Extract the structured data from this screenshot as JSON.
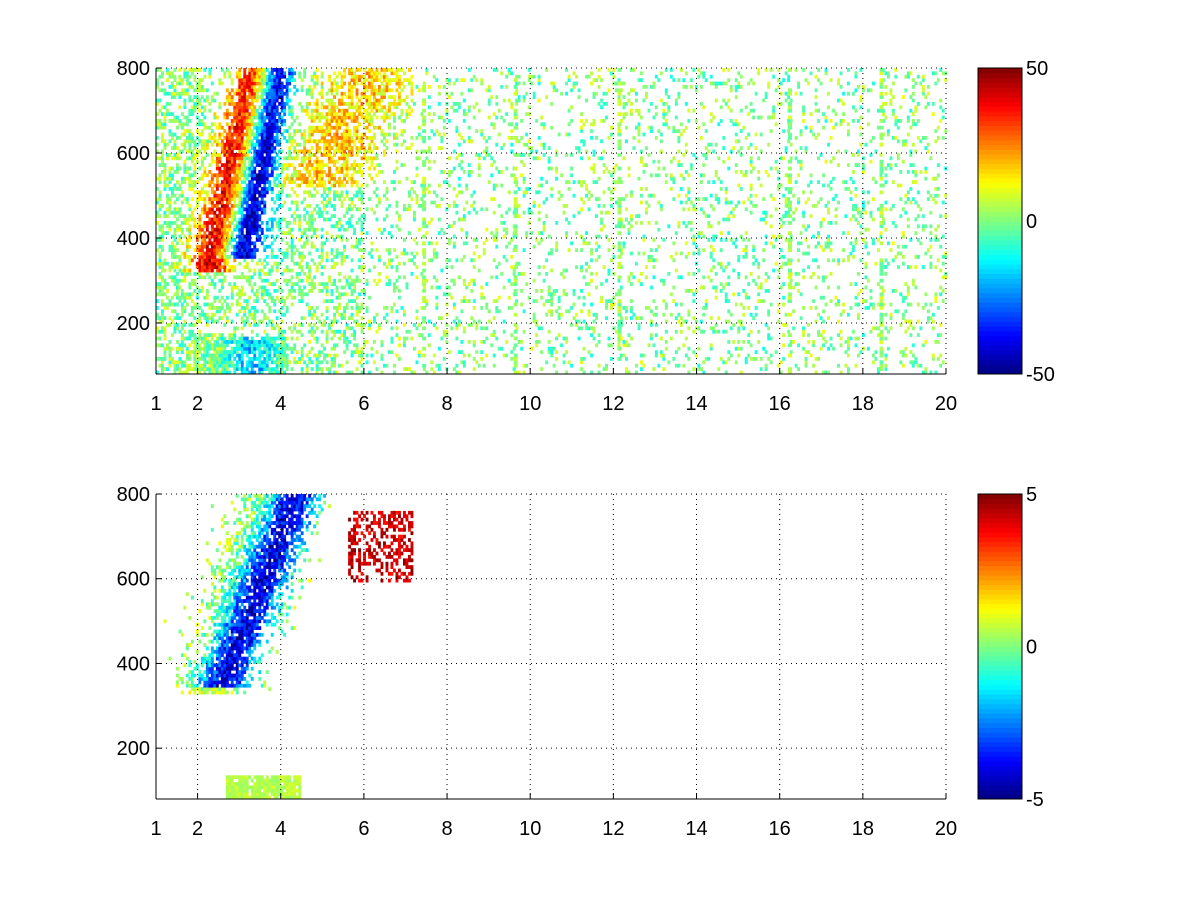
{
  "chart_data": [
    {
      "type": "heatmap",
      "title": "",
      "xlabel": "",
      "ylabel": "",
      "xlim": [
        1,
        20
      ],
      "ylim": [
        80,
        800
      ],
      "grid": true,
      "x_ticks": [
        1,
        2,
        4,
        6,
        8,
        10,
        12,
        14,
        16,
        18,
        20
      ],
      "x_tick_labels": [
        "1",
        "2",
        "4",
        "6",
        "8",
        "10",
        "12",
        "14",
        "16",
        "18",
        "20"
      ],
      "y_ticks": [
        200,
        400,
        600,
        800
      ],
      "y_tick_labels": [
        "200",
        "400",
        "600",
        "800"
      ],
      "colormap": "jet",
      "clim": [
        -50,
        50
      ],
      "colorbar_ticks": [
        50,
        0,
        -50
      ],
      "colorbar_tick_labels": [
        "50",
        "0",
        "-50"
      ],
      "features": [
        {
          "region": "positive ridge",
          "x": [
            2.0,
            3.6
          ],
          "y_start": [
            350,
            800
          ],
          "value_range": [
            15,
            45
          ]
        },
        {
          "region": "negative ridge",
          "x": [
            3.0,
            4.4
          ],
          "y_start": [
            380,
            800
          ],
          "value_range": [
            -50,
            -15
          ]
        },
        {
          "region": "low-altitude band",
          "x": [
            2.0,
            4.0
          ],
          "y": [
            80,
            170
          ],
          "value_range": [
            -25,
            5
          ]
        },
        {
          "region": "scattered noise",
          "x": [
            4.5,
            20
          ],
          "y": [
            80,
            800
          ],
          "value_range": [
            -10,
            15
          ]
        }
      ],
      "vertical_stripes_x": [
        7.4,
        9.6,
        12.1,
        16.2,
        18.4
      ]
    },
    {
      "type": "heatmap",
      "title": "",
      "xlabel": "",
      "ylabel": "",
      "xlim": [
        1,
        20
      ],
      "ylim": [
        80,
        800
      ],
      "grid": true,
      "x_ticks": [
        1,
        2,
        4,
        6,
        8,
        10,
        12,
        14,
        16,
        18,
        20
      ],
      "x_tick_labels": [
        "1",
        "2",
        "4",
        "6",
        "8",
        "10",
        "12",
        "14",
        "16",
        "18",
        "20"
      ],
      "y_ticks": [
        200,
        400,
        600,
        800
      ],
      "y_tick_labels": [
        "200",
        "400",
        "600",
        "800"
      ],
      "colormap": "jet",
      "clim": [
        -5,
        5
      ],
      "colorbar_ticks": [
        5,
        0,
        -5
      ],
      "colorbar_tick_labels": [
        "5",
        "0",
        "-5"
      ],
      "features": [
        {
          "region": "negative ridge",
          "x": [
            2.2,
            5.5
          ],
          "y_start": [
            350,
            800
          ],
          "value_range": [
            -5,
            -2
          ]
        },
        {
          "region": "near-zero spread",
          "x": [
            2.0,
            4.2
          ],
          "y": [
            330,
            800
          ],
          "value_range": [
            -1.5,
            1.5
          ]
        },
        {
          "region": "positive tail",
          "x": [
            5.5,
            7.2
          ],
          "y": [
            580,
            760
          ],
          "value_range": [
            2,
            5
          ]
        },
        {
          "region": "low-altitude band",
          "x": [
            2.6,
            4.5
          ],
          "y": [
            80,
            140
          ],
          "value_range": [
            0,
            1
          ]
        }
      ]
    }
  ]
}
